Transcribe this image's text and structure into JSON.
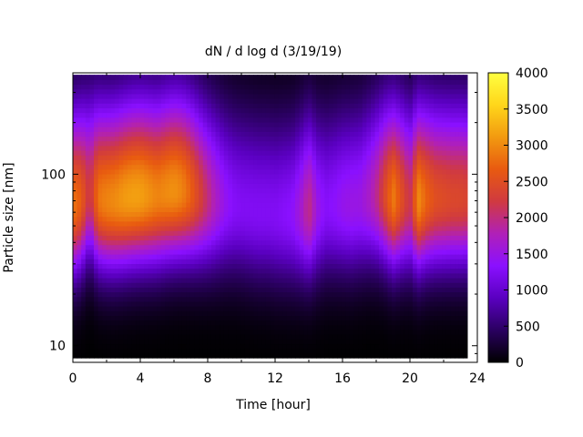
{
  "chart_data": {
    "type": "heatmap",
    "title": "dN / d log d (3/19/19)",
    "xlabel": "Time [hour]",
    "ylabel": "Particle size [nm]",
    "x_range": [
      0,
      24
    ],
    "x_ticks": [
      0,
      4,
      8,
      12,
      16,
      20,
      24
    ],
    "x_tick_labels": [
      "0",
      "4",
      "8",
      "12",
      "16",
      "20",
      "24"
    ],
    "y_scale": "log",
    "y_range": [
      8,
      390
    ],
    "y_ticks": [
      10,
      100
    ],
    "y_tick_labels": [
      "10",
      "100"
    ],
    "colorbar": {
      "range": [
        0,
        4000
      ],
      "ticks": [
        0,
        500,
        1000,
        1500,
        2000,
        2500,
        3000,
        3500,
        4000
      ],
      "tick_labels": [
        "0",
        "500",
        "1000",
        "1500",
        "2000",
        "2500",
        "3000",
        "3500",
        "4000"
      ],
      "palette": [
        "#000000",
        "#2a0060",
        "#5a00c0",
        "#8a10ff",
        "#b020b8",
        "#d03a40",
        "#e85a10",
        "#f29a10",
        "#ffd61a",
        "#ffff40"
      ]
    },
    "data_time_extent_hours": [
      0,
      23.4
    ],
    "data_size_extent_nm": [
      8.5,
      380
    ],
    "time_grid_hours": [
      0.0,
      0.5,
      1.0,
      1.5,
      2.0,
      2.5,
      3.0,
      3.5,
      4.0,
      4.5,
      5.0,
      5.5,
      6.0,
      6.5,
      7.0,
      7.5,
      8.0,
      8.5,
      9.0,
      9.5,
      10.0,
      10.5,
      11.0,
      11.5,
      12.0,
      12.5,
      13.0,
      13.5,
      14.0,
      14.5,
      15.0,
      15.5,
      16.0,
      16.5,
      17.0,
      17.5,
      18.0,
      18.5,
      19.0,
      19.5,
      20.0,
      20.5,
      21.0,
      21.5,
      22.0,
      22.5,
      23.0,
      23.4
    ],
    "mode": {
      "peak_amplitude": [
        2850,
        2650,
        2100,
        2850,
        2950,
        3000,
        3100,
        3150,
        3150,
        3050,
        2950,
        3000,
        3050,
        2950,
        2700,
        2350,
        2000,
        1700,
        1450,
        1300,
        1250,
        1250,
        1250,
        1250,
        1250,
        1300,
        1350,
        1600,
        2000,
        1500,
        1300,
        1350,
        1450,
        1500,
        1500,
        1650,
        1900,
        2400,
        2900,
        2500,
        2100,
        3000,
        2700,
        2500,
        2450,
        2400,
        2400,
        2350
      ],
      "peak_diameter_nm": [
        65,
        70,
        80,
        72,
        70,
        70,
        72,
        74,
        75,
        75,
        75,
        78,
        80,
        80,
        78,
        75,
        72,
        70,
        68,
        66,
        64,
        62,
        60,
        60,
        58,
        58,
        58,
        60,
        62,
        62,
        64,
        65,
        66,
        66,
        68,
        72,
        75,
        75,
        72,
        72,
        70,
        70,
        72,
        72,
        72,
        72,
        72,
        72
      ]
    }
  }
}
